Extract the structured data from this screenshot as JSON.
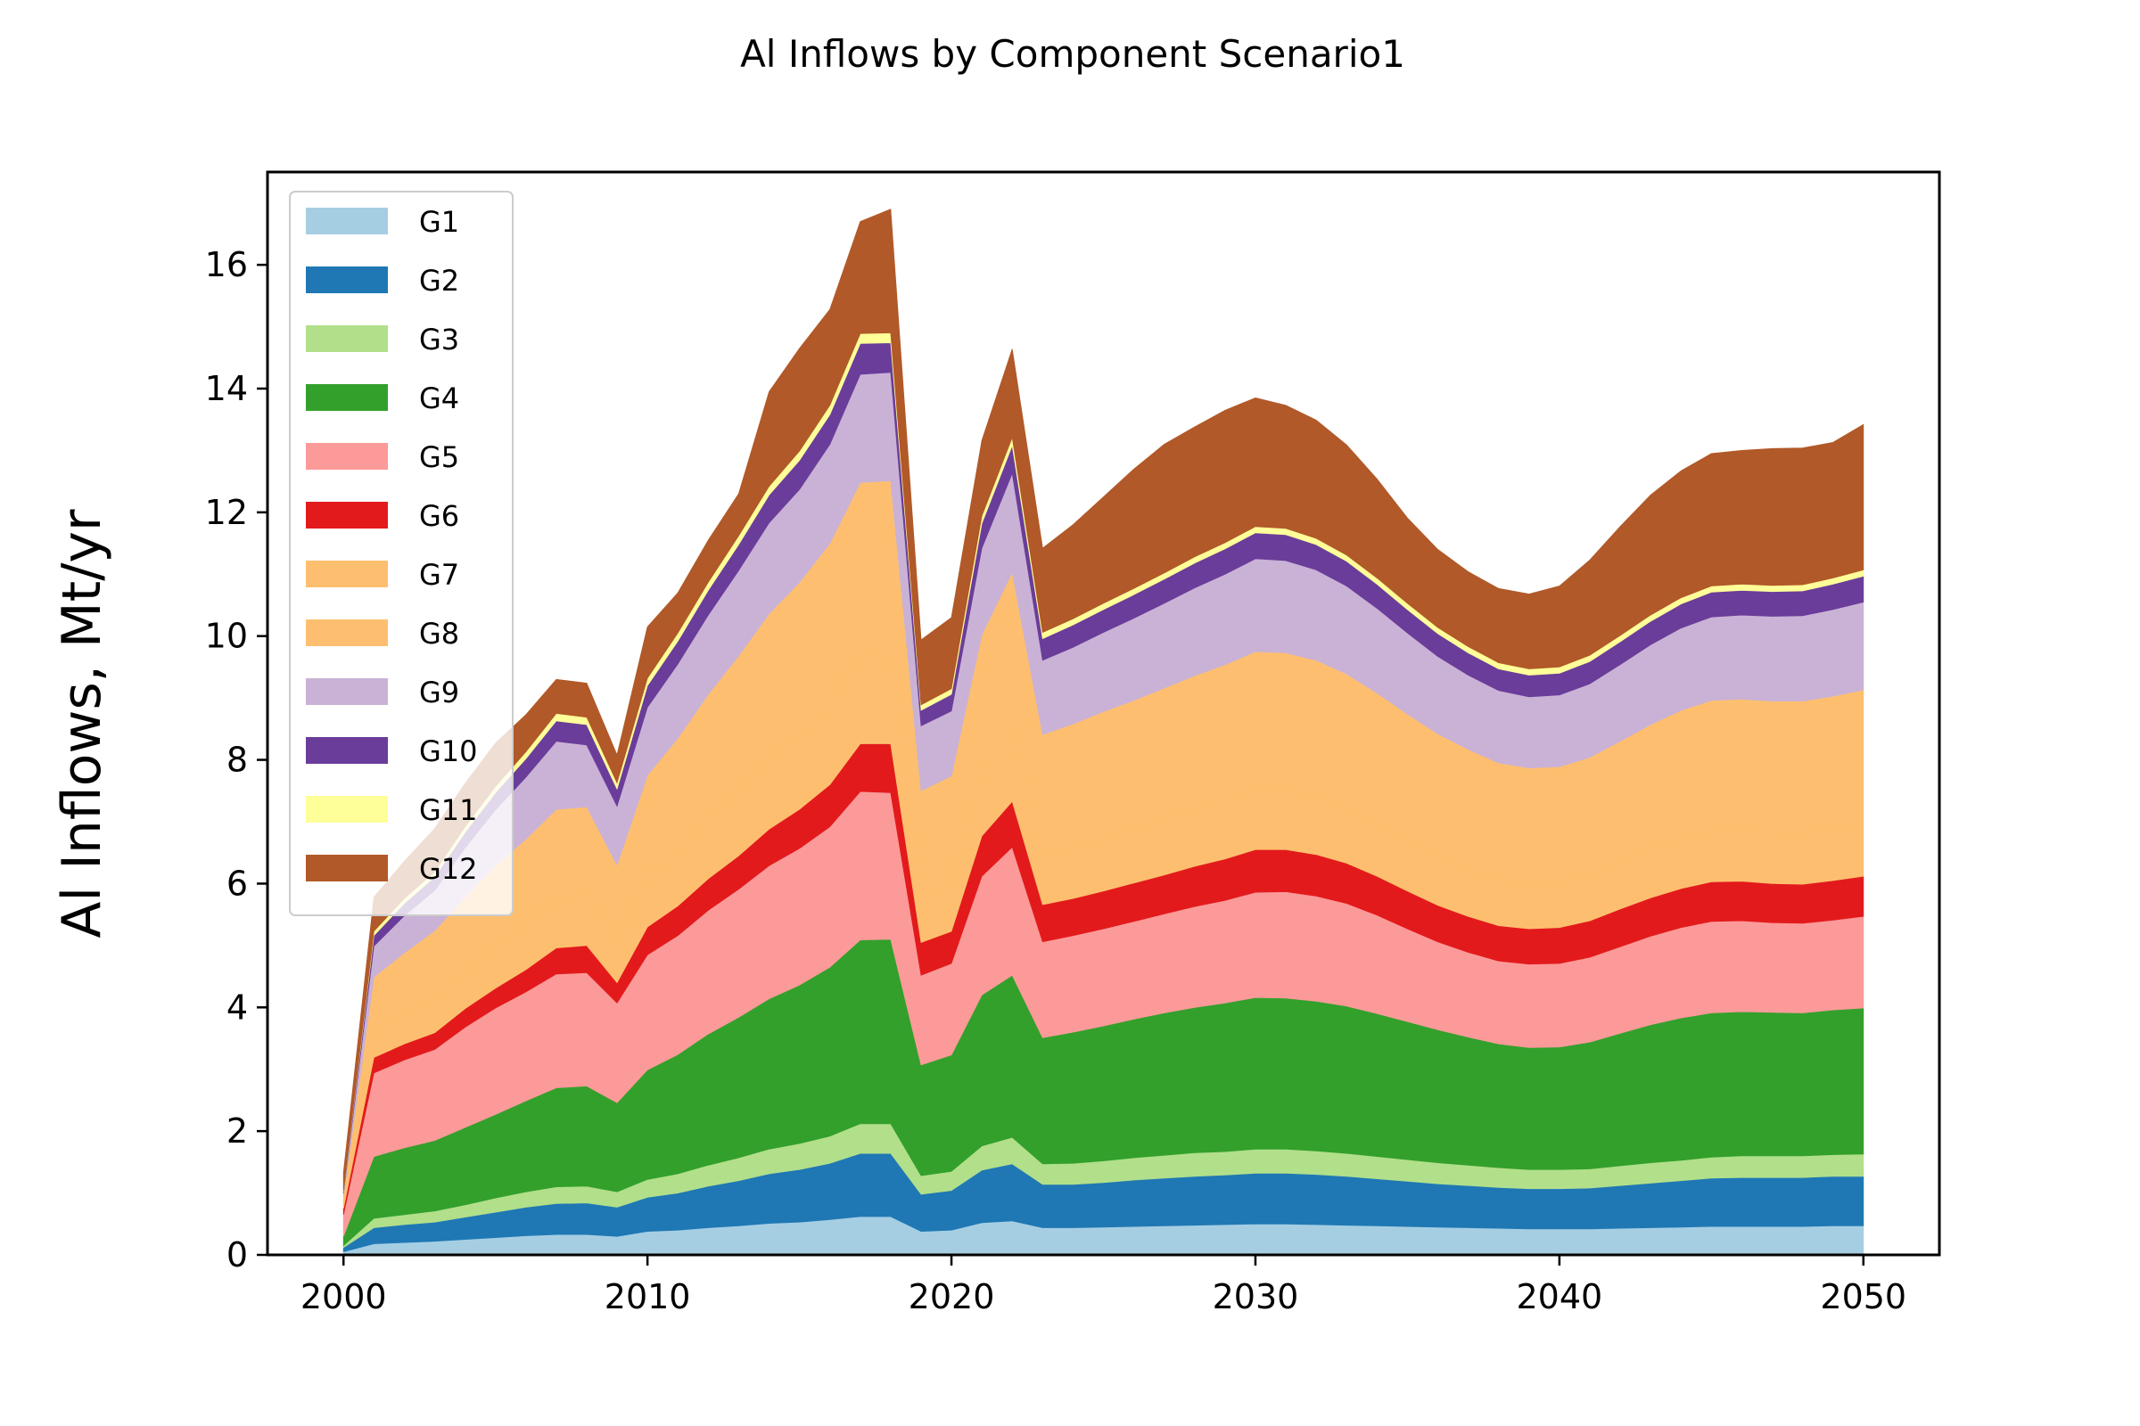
{
  "chart_data": {
    "type": "area",
    "stacked": true,
    "title": "Al Inflows by Component Scenario1",
    "xlabel": "",
    "ylabel": "Al Inflows, Mt/yr",
    "xlim": [
      1997.5,
      2052.5
    ],
    "ylim": [
      0,
      17.5
    ],
    "xticks": [
      2000,
      2010,
      2020,
      2030,
      2040,
      2050
    ],
    "yticks": [
      0,
      2,
      4,
      6,
      8,
      10,
      12,
      14,
      16
    ],
    "legend_position": "upper-left",
    "grid": false,
    "x": [
      2000,
      2001,
      2002,
      2003,
      2004,
      2005,
      2006,
      2007,
      2008,
      2009,
      2010,
      2011,
      2012,
      2013,
      2014,
      2015,
      2016,
      2017,
      2018,
      2019,
      2020,
      2021,
      2022,
      2023,
      2024,
      2025,
      2026,
      2027,
      2028,
      2029,
      2030,
      2031,
      2032,
      2033,
      2034,
      2035,
      2036,
      2037,
      2038,
      2039,
      2040,
      2041,
      2042,
      2043,
      2044,
      2045,
      2046,
      2047,
      2048,
      2049,
      2050
    ],
    "series": [
      {
        "name": "G1",
        "color": "#a6cee3",
        "values": [
          0.05,
          0.18,
          0.2,
          0.22,
          0.25,
          0.28,
          0.31,
          0.33,
          0.33,
          0.3,
          0.38,
          0.4,
          0.44,
          0.47,
          0.51,
          0.53,
          0.57,
          0.62,
          0.62,
          0.38,
          0.4,
          0.52,
          0.55,
          0.44,
          0.44,
          0.45,
          0.46,
          0.47,
          0.48,
          0.49,
          0.5,
          0.5,
          0.49,
          0.48,
          0.47,
          0.46,
          0.45,
          0.44,
          0.43,
          0.42,
          0.42,
          0.42,
          0.43,
          0.44,
          0.45,
          0.46,
          0.46,
          0.46,
          0.46,
          0.47,
          0.47
        ]
      },
      {
        "name": "G2",
        "color": "#1f78b4",
        "values": [
          0.07,
          0.26,
          0.29,
          0.31,
          0.36,
          0.41,
          0.46,
          0.5,
          0.51,
          0.47,
          0.55,
          0.6,
          0.67,
          0.73,
          0.8,
          0.85,
          0.91,
          1.02,
          1.02,
          0.6,
          0.64,
          0.85,
          0.92,
          0.7,
          0.7,
          0.72,
          0.75,
          0.77,
          0.79,
          0.8,
          0.82,
          0.82,
          0.81,
          0.79,
          0.76,
          0.73,
          0.7,
          0.68,
          0.66,
          0.65,
          0.65,
          0.66,
          0.69,
          0.72,
          0.75,
          0.78,
          0.79,
          0.79,
          0.79,
          0.8,
          0.8
        ]
      },
      {
        "name": "G3",
        "color": "#b2df8a",
        "values": [
          0.03,
          0.15,
          0.16,
          0.18,
          0.2,
          0.23,
          0.25,
          0.27,
          0.27,
          0.25,
          0.29,
          0.31,
          0.34,
          0.37,
          0.4,
          0.42,
          0.44,
          0.48,
          0.48,
          0.3,
          0.31,
          0.39,
          0.43,
          0.33,
          0.34,
          0.35,
          0.36,
          0.37,
          0.38,
          0.38,
          0.39,
          0.39,
          0.38,
          0.37,
          0.36,
          0.35,
          0.34,
          0.33,
          0.32,
          0.31,
          0.31,
          0.31,
          0.32,
          0.33,
          0.33,
          0.34,
          0.35,
          0.35,
          0.35,
          0.35,
          0.36
        ]
      },
      {
        "name": "G4",
        "color": "#33a02c",
        "values": [
          0.15,
          1.0,
          1.08,
          1.14,
          1.25,
          1.35,
          1.47,
          1.6,
          1.62,
          1.44,
          1.77,
          1.93,
          2.12,
          2.27,
          2.43,
          2.56,
          2.73,
          2.97,
          2.98,
          1.79,
          1.88,
          2.44,
          2.62,
          2.04,
          2.12,
          2.18,
          2.24,
          2.3,
          2.35,
          2.4,
          2.45,
          2.44,
          2.42,
          2.38,
          2.31,
          2.23,
          2.15,
          2.07,
          2.0,
          1.97,
          1.98,
          2.05,
          2.14,
          2.23,
          2.3,
          2.33,
          2.33,
          2.32,
          2.31,
          2.34,
          2.36
        ]
      },
      {
        "name": "G5",
        "color": "#fb9a99",
        "values": [
          0.35,
          1.35,
          1.42,
          1.47,
          1.62,
          1.72,
          1.76,
          1.84,
          1.83,
          1.61,
          1.86,
          1.92,
          2.0,
          2.07,
          2.15,
          2.21,
          2.27,
          2.4,
          2.37,
          1.45,
          1.48,
          1.92,
          2.07,
          1.55,
          1.56,
          1.57,
          1.58,
          1.6,
          1.63,
          1.66,
          1.7,
          1.72,
          1.7,
          1.66,
          1.59,
          1.5,
          1.42,
          1.37,
          1.34,
          1.35,
          1.35,
          1.37,
          1.4,
          1.43,
          1.46,
          1.48,
          1.47,
          1.45,
          1.45,
          1.45,
          1.48
        ]
      },
      {
        "name": "G6",
        "color": "#e31a1c",
        "values": [
          0.1,
          0.25,
          0.26,
          0.27,
          0.3,
          0.32,
          0.36,
          0.42,
          0.44,
          0.33,
          0.45,
          0.48,
          0.51,
          0.54,
          0.59,
          0.63,
          0.68,
          0.77,
          0.79,
          0.53,
          0.52,
          0.65,
          0.74,
          0.6,
          0.6,
          0.61,
          0.62,
          0.63,
          0.65,
          0.67,
          0.69,
          0.68,
          0.67,
          0.65,
          0.63,
          0.61,
          0.59,
          0.58,
          0.57,
          0.57,
          0.58,
          0.59,
          0.61,
          0.62,
          0.63,
          0.64,
          0.64,
          0.63,
          0.63,
          0.64,
          0.65
        ]
      },
      {
        "name": "G7",
        "color": "#fdbf6f",
        "values": [
          0.1,
          0.4,
          0.47,
          0.55,
          0.6,
          0.68,
          0.76,
          0.82,
          0.82,
          0.7,
          0.85,
          0.93,
          1.0,
          1.08,
          1.15,
          1.22,
          1.3,
          1.42,
          1.45,
          0.75,
          0.76,
          1.0,
          1.2,
          0.8,
          0.82,
          0.85,
          0.87,
          0.9,
          0.93,
          0.95,
          0.97,
          0.96,
          0.94,
          0.9,
          0.86,
          0.82,
          0.79,
          0.77,
          0.75,
          0.74,
          0.74,
          0.75,
          0.76,
          0.78,
          0.8,
          0.82,
          0.82,
          0.82,
          0.82,
          0.83,
          0.84
        ]
      },
      {
        "name": "G8",
        "color": "#fdbf6f",
        "values": [
          0.1,
          0.9,
          1.0,
          1.1,
          1.2,
          1.3,
          1.35,
          1.42,
          1.42,
          1.2,
          1.6,
          1.78,
          1.98,
          2.15,
          2.33,
          2.45,
          2.6,
          2.8,
          2.8,
          1.7,
          1.75,
          2.25,
          2.5,
          1.95,
          2.0,
          2.05,
          2.08,
          2.12,
          2.15,
          2.19,
          2.23,
          2.22,
          2.2,
          2.16,
          2.1,
          2.04,
          1.98,
          1.93,
          1.88,
          1.86,
          1.86,
          1.89,
          1.95,
          2.02,
          2.08,
          2.11,
          2.12,
          2.13,
          2.14,
          2.15,
          2.17
        ]
      },
      {
        "name": "G9",
        "color": "#cab2d6",
        "values": [
          0.05,
          0.5,
          0.6,
          0.65,
          0.8,
          0.9,
          1.0,
          1.1,
          1.0,
          0.95,
          1.1,
          1.2,
          1.28,
          1.38,
          1.47,
          1.5,
          1.6,
          1.75,
          1.75,
          1.05,
          1.05,
          1.4,
          1.6,
          1.2,
          1.24,
          1.28,
          1.33,
          1.37,
          1.42,
          1.46,
          1.5,
          1.49,
          1.46,
          1.42,
          1.37,
          1.31,
          1.25,
          1.2,
          1.17,
          1.15,
          1.16,
          1.19,
          1.24,
          1.29,
          1.33,
          1.35,
          1.36,
          1.37,
          1.38,
          1.4,
          1.42
        ]
      },
      {
        "name": "G10",
        "color": "#6a3d9a",
        "values": [
          0.02,
          0.17,
          0.2,
          0.22,
          0.25,
          0.28,
          0.3,
          0.33,
          0.33,
          0.28,
          0.35,
          0.37,
          0.4,
          0.42,
          0.45,
          0.47,
          0.48,
          0.5,
          0.48,
          0.25,
          0.27,
          0.4,
          0.45,
          0.35,
          0.36,
          0.37,
          0.38,
          0.39,
          0.4,
          0.41,
          0.42,
          0.42,
          0.41,
          0.4,
          0.39,
          0.38,
          0.37,
          0.36,
          0.35,
          0.35,
          0.35,
          0.36,
          0.37,
          0.38,
          0.39,
          0.4,
          0.4,
          0.4,
          0.4,
          0.41,
          0.42
        ]
      },
      {
        "name": "G11",
        "color": "#ffff99",
        "values": [
          0.01,
          0.07,
          0.08,
          0.08,
          0.09,
          0.1,
          0.11,
          0.12,
          0.12,
          0.1,
          0.12,
          0.13,
          0.13,
          0.14,
          0.14,
          0.15,
          0.15,
          0.16,
          0.16,
          0.09,
          0.09,
          0.12,
          0.13,
          0.1,
          0.1,
          0.1,
          0.1,
          0.1,
          0.1,
          0.1,
          0.1,
          0.1,
          0.1,
          0.1,
          0.1,
          0.1,
          0.1,
          0.1,
          0.1,
          0.1,
          0.1,
          0.1,
          0.1,
          0.1,
          0.1,
          0.1,
          0.1,
          0.1,
          0.1,
          0.1,
          0.1
        ]
      },
      {
        "name": "G12",
        "color": "#b15928",
        "values": [
          0.3,
          0.55,
          0.6,
          0.7,
          0.7,
          0.7,
          0.6,
          0.55,
          0.55,
          0.45,
          0.83,
          0.65,
          0.68,
          0.68,
          1.53,
          1.66,
          1.55,
          1.81,
          2.0,
          1.05,
          1.15,
          1.22,
          1.43,
          1.36,
          1.52,
          1.72,
          1.93,
          2.08,
          2.1,
          2.14,
          2.08,
          1.99,
          1.91,
          1.78,
          1.6,
          1.38,
          1.26,
          1.21,
          1.2,
          1.21,
          1.31,
          1.54,
          1.76,
          1.94,
          2.05,
          2.14,
          2.16,
          2.21,
          2.21,
          2.19,
          2.35
        ]
      }
    ]
  }
}
